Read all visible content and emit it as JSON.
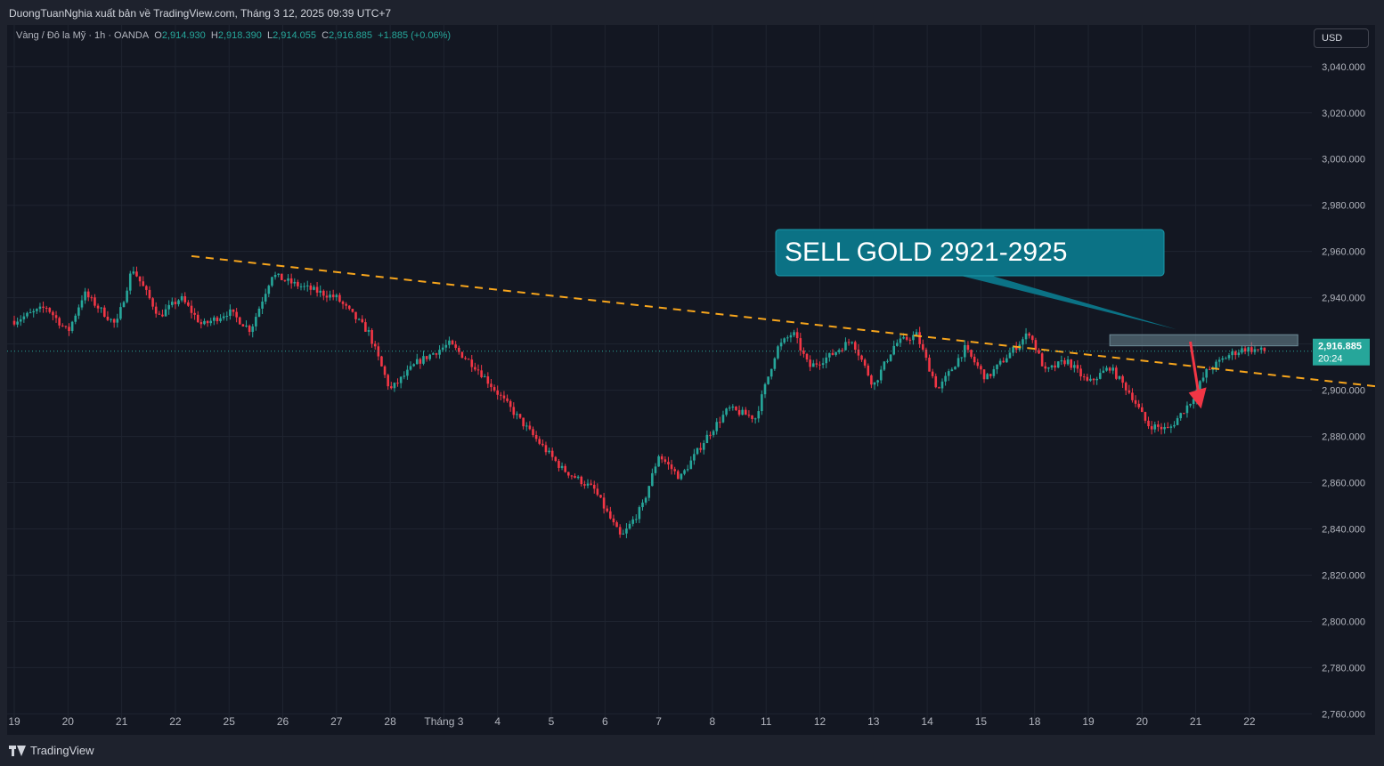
{
  "publisher_line": "DuongTuanNghia xuất bản về TradingView.com, Tháng 3 12, 2025 09:39 UTC+7",
  "legend": {
    "symbol": "Vàng / Đô la Mỹ · 1h · OANDA",
    "o_label": "O",
    "o_value": "2,914.930",
    "h_label": "H",
    "h_value": "2,918.390",
    "l_label": "L",
    "l_value": "2,914.055",
    "c_label": "C",
    "c_value": "2,916.885",
    "change": "+1.885 (+0.06%)"
  },
  "currency": "USD",
  "brand": "TradingView",
  "colors": {
    "up": "#26a69a",
    "down": "#f23645",
    "trendline": "#f7a51c",
    "callout": "#0b7285",
    "zone": "#6d8a96",
    "arrow": "#f23645"
  },
  "chart_data": {
    "type": "candlestick",
    "instrument": "XAU/USD",
    "timeframe": "1h",
    "x_ticks": [
      "19",
      "20",
      "21",
      "22",
      "25",
      "26",
      "27",
      "28",
      "Tháng 3",
      "4",
      "5",
      "6",
      "7",
      "8",
      "11",
      "12",
      "13",
      "14",
      "15",
      "18",
      "19",
      "20",
      "21",
      "22"
    ],
    "y_ticks": [
      "3,040.000",
      "3,020.000",
      "3,000.000",
      "2,980.000",
      "2,960.000",
      "2,940.000",
      "2,920.000",
      "2,900.000",
      "2,880.000",
      "2,860.000",
      "2,840.000",
      "2,820.000",
      "2,800.000",
      "2,780.000",
      "2,760.000"
    ],
    "y_tick_values": [
      3040,
      3020,
      3000,
      2980,
      2960,
      2940,
      2920,
      2900,
      2880,
      2860,
      2840,
      2820,
      2800,
      2780,
      2760
    ],
    "ylim": [
      2754,
      3058
    ],
    "price_path": [
      [
        0,
        2930
      ],
      [
        0.6,
        2936
      ],
      [
        1.0,
        2925
      ],
      [
        1.3,
        2942
      ],
      [
        1.9,
        2928
      ],
      [
        2.2,
        2953
      ],
      [
        2.7,
        2932
      ],
      [
        3.1,
        2940
      ],
      [
        3.5,
        2928
      ],
      [
        4.0,
        2934
      ],
      [
        4.4,
        2926
      ],
      [
        4.8,
        2950
      ],
      [
        5.2,
        2946
      ],
      [
        6.0,
        2940
      ],
      [
        6.6,
        2925
      ],
      [
        7.0,
        2900
      ],
      [
        7.5,
        2912
      ],
      [
        8.1,
        2920
      ],
      [
        8.6,
        2910
      ],
      [
        9.1,
        2896
      ],
      [
        9.6,
        2882
      ],
      [
        10.2,
        2866
      ],
      [
        10.8,
        2857
      ],
      [
        11.3,
        2836
      ],
      [
        11.7,
        2850
      ],
      [
        12.0,
        2872
      ],
      [
        12.4,
        2862
      ],
      [
        12.9,
        2880
      ],
      [
        13.3,
        2892
      ],
      [
        13.8,
        2888
      ],
      [
        14.2,
        2918
      ],
      [
        14.5,
        2925
      ],
      [
        14.8,
        2910
      ],
      [
        15.2,
        2915
      ],
      [
        15.6,
        2922
      ],
      [
        16.0,
        2902
      ],
      [
        16.4,
        2920
      ],
      [
        16.8,
        2924
      ],
      [
        17.2,
        2900
      ],
      [
        17.7,
        2918
      ],
      [
        18.1,
        2905
      ],
      [
        18.5,
        2915
      ],
      [
        18.9,
        2925
      ],
      [
        19.2,
        2908
      ],
      [
        19.6,
        2913
      ],
      [
        20.0,
        2903
      ],
      [
        20.4,
        2910
      ],
      [
        20.8,
        2898
      ],
      [
        21.1,
        2885
      ],
      [
        21.5,
        2883
      ],
      [
        21.9,
        2895
      ],
      [
        22.2,
        2908
      ],
      [
        22.6,
        2915
      ],
      [
        22.9,
        2918
      ],
      [
        23.3,
        2916.885
      ]
    ],
    "last_price": "2,916.885",
    "countdown": "20:24",
    "trendline": {
      "start": [
        3.3,
        2958
      ],
      "end": [
        26.6,
        2898.5
      ],
      "style": "dashed"
    },
    "sell_zone": {
      "x": [
        20.4,
        23.9
      ],
      "y": [
        2919.2,
        2924
      ]
    },
    "annotation": "SELL GOLD 2921-2925",
    "arrow": {
      "from": [
        21.9,
        2921
      ],
      "to": [
        22.1,
        2892
      ],
      "direction": "down"
    }
  }
}
